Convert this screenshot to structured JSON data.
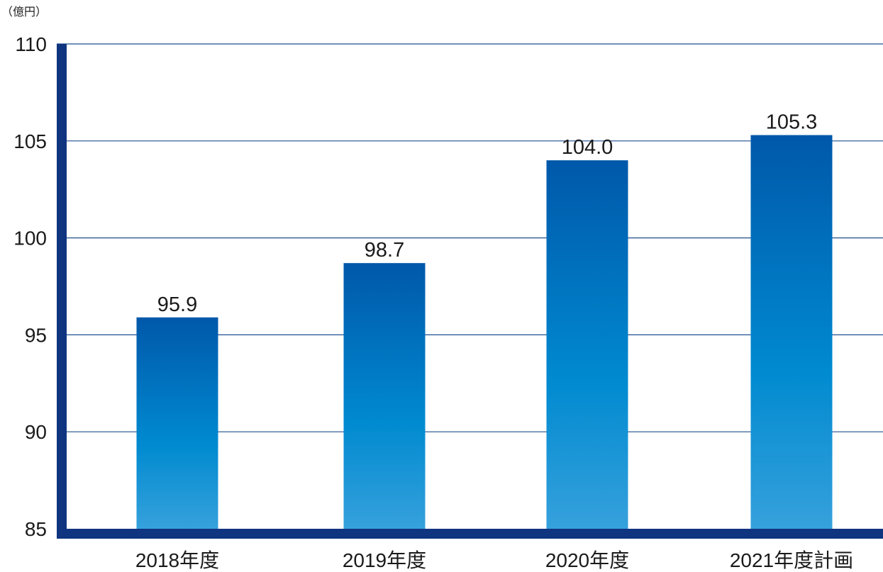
{
  "chart_data": {
    "type": "bar",
    "unit": "（億円）",
    "categories": [
      "2018年度",
      "2019年度",
      "2020年度",
      "2021年度計画"
    ],
    "values": [
      95.9,
      98.7,
      104.0,
      105.3
    ],
    "value_labels": [
      "95.9",
      "98.7",
      "104.0",
      "105.3"
    ],
    "ylim": [
      85,
      110
    ],
    "yticks": [
      110,
      105,
      100,
      95,
      90,
      85
    ],
    "grid": true,
    "colors": {
      "axis": "#0f3480",
      "grid": "#1f4f8f",
      "bar_top": "#0058aa",
      "bar_mid": "#008ad0",
      "bar_bottom": "#36a1dc"
    }
  }
}
